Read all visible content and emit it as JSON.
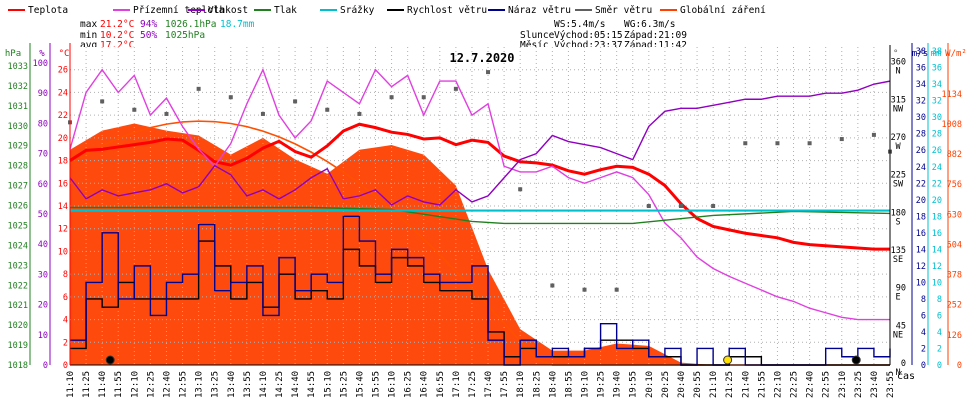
{
  "legend": [
    {
      "label": "Teplota",
      "color": "#ff0000"
    },
    {
      "label": "Přízemní teplota",
      "color": "#e040e0"
    },
    {
      "label": "Vlhkost",
      "color": "#9000c0"
    },
    {
      "label": "Tlak",
      "color": "#208020"
    },
    {
      "label": "Srážky",
      "color": "#00c0d0"
    },
    {
      "label": "Rychlost větru",
      "color": "#000000"
    },
    {
      "label": "Náraz větru",
      "color": "#000090"
    },
    {
      "label": "Směr větru",
      "color": "#606060"
    },
    {
      "label": "Globální záření",
      "color": "#ff4000"
    }
  ],
  "stats": {
    "max": {
      "label": "max",
      "temp": "21.2°C",
      "hum": "94%",
      "press": "1026.1hPa",
      "rain": "18.7mm"
    },
    "min": {
      "label": "min",
      "temp": "10.2°C",
      "hum": "50%",
      "press": "1025hPa"
    },
    "avg": {
      "label": "avg",
      "temp": "17.2°C"
    },
    "ws": "WS:5.4m/s",
    "wg": "WG:6.3m/s",
    "slunce": "Slunce",
    "mesic": "Měsíc",
    "sun_rise": "Východ:05:15",
    "sun_set": "Západ:21:09",
    "moon_rise": "Východ:23:37",
    "moon_set": "Západ:11:42"
  },
  "chart_data": {
    "type": "line",
    "title": "12.7.2020",
    "x_unit_label": "čas",
    "x_ticks": [
      "11:10",
      "11:25",
      "11:40",
      "11:55",
      "12:10",
      "12:25",
      "12:40",
      "12:55",
      "13:10",
      "13:25",
      "13:40",
      "13:55",
      "14:10",
      "14:25",
      "14:40",
      "14:55",
      "15:10",
      "15:25",
      "15:40",
      "15:55",
      "16:10",
      "16:25",
      "16:40",
      "16:55",
      "17:10",
      "17:25",
      "17:40",
      "17:55",
      "18:10",
      "18:25",
      "18:40",
      "18:55",
      "19:10",
      "19:25",
      "19:40",
      "19:55",
      "20:10",
      "20:25",
      "20:40",
      "20:55",
      "21:10",
      "21:25",
      "21:40",
      "21:55",
      "22:10",
      "22:25",
      "22:40",
      "22:55",
      "23:10",
      "23:25",
      "23:40",
      "23:55"
    ],
    "axes": {
      "hpa": {
        "label": "hPa",
        "color": "#208020",
        "ticks": [
          "1018",
          "1019",
          "1020",
          "1021",
          "1022",
          "1023",
          "1024",
          "1025",
          "1026",
          "1027",
          "1028",
          "1029",
          "1030",
          "1031",
          "1032",
          "1033"
        ]
      },
      "percent": {
        "label": "%",
        "color": "#9000c0",
        "ticks": [
          "0",
          "10",
          "20",
          "30",
          "40",
          "50",
          "60",
          "70",
          "80",
          "90",
          "100"
        ]
      },
      "celsius": {
        "label": "°C",
        "color": "#ff0000",
        "ticks": [
          "0",
          "2",
          "4",
          "6",
          "8",
          "10",
          "12",
          "14",
          "16",
          "18",
          "20",
          "22",
          "24",
          "26"
        ]
      },
      "direction": {
        "label": "°",
        "color": "#606060",
        "ticks": [
          {
            "deg": "0",
            "dir": "N"
          },
          {
            "deg": "45",
            "dir": "NE"
          },
          {
            "deg": "90",
            "dir": "E"
          },
          {
            "deg": "135",
            "dir": "SE"
          },
          {
            "deg": "180",
            "dir": "S"
          },
          {
            "deg": "225",
            "dir": "SW"
          },
          {
            "deg": "270",
            "dir": "W"
          },
          {
            "deg": "315",
            "dir": "NW"
          },
          {
            "deg": "360",
            "dir": "N"
          }
        ]
      },
      "ms": {
        "label": "m/s",
        "color": "#000090",
        "ticks": [
          "0",
          "2",
          "4",
          "6",
          "8",
          "10",
          "12",
          "14",
          "16",
          "18",
          "20",
          "22",
          "24",
          "26",
          "28",
          "30",
          "32",
          "34",
          "36",
          "38"
        ]
      },
      "mm": {
        "label": "mm",
        "color": "#00c0d0",
        "ticks": [
          "0",
          "2",
          "4",
          "6",
          "8",
          "10",
          "12",
          "14",
          "16",
          "18",
          "20",
          "22",
          "24",
          "26",
          "28",
          "30",
          "32",
          "34",
          "36",
          "38"
        ]
      },
      "wm": {
        "label": "W/m²",
        "color": "#ff4000",
        "ticks": [
          "0",
          "126",
          "252",
          "378",
          "504",
          "630",
          "756",
          "882",
          "1008",
          "1134"
        ]
      }
    },
    "series": [
      {
        "name": "Teplota",
        "unit": "°C",
        "color": "#ff0000",
        "x": [
          0,
          1,
          2,
          3,
          4,
          5,
          6,
          7,
          8,
          9,
          10,
          11,
          12,
          13,
          14,
          15,
          16,
          17,
          18,
          19,
          20,
          21,
          22,
          23,
          24,
          25,
          26,
          27,
          28,
          29,
          30,
          31,
          32,
          33,
          34,
          35,
          36,
          37,
          38,
          39,
          40,
          41,
          42,
          43,
          44,
          45,
          46,
          47,
          48,
          49,
          50,
          51
        ],
        "values": [
          18,
          18.9,
          19,
          19.2,
          19.4,
          19.6,
          19.9,
          19.8,
          18.9,
          17.9,
          17.6,
          18.2,
          19.1,
          19.7,
          18.8,
          18.3,
          19.3,
          20.6,
          21.2,
          20.9,
          20.5,
          20.3,
          19.9,
          20,
          19.4,
          19.8,
          19.6,
          18.4,
          17.9,
          17.8,
          17.6,
          17.1,
          16.8,
          17.2,
          17.5,
          17.4,
          16.8,
          15.8,
          14.2,
          12.9,
          12.2,
          11.9,
          11.6,
          11.4,
          11.2,
          10.8,
          10.6,
          10.5,
          10.4,
          10.3,
          10.2,
          10.2
        ]
      },
      {
        "name": "Přízemní teplota",
        "unit": "°C",
        "color": "#e040e0",
        "x": [
          0,
          1,
          2,
          3,
          4,
          5,
          6,
          7,
          8,
          9,
          10,
          11,
          12,
          13,
          14,
          15,
          16,
          17,
          18,
          19,
          20,
          21,
          22,
          23,
          24,
          25,
          26,
          27,
          28,
          29,
          30,
          31,
          32,
          33,
          34,
          35,
          36,
          37,
          38,
          39,
          40,
          41,
          42,
          43,
          44,
          45,
          46,
          47,
          48,
          49,
          50,
          51
        ],
        "values": [
          19,
          24,
          26,
          24,
          25.5,
          22,
          23.5,
          21,
          19,
          17.5,
          19.5,
          23,
          26,
          22,
          20,
          21.5,
          25,
          24,
          23,
          26,
          24.5,
          25.5,
          22,
          25,
          25,
          22,
          23,
          17.5,
          17,
          17,
          17.5,
          16.5,
          16,
          16.5,
          17,
          16.5,
          15,
          12.5,
          11.2,
          9.5,
          8.5,
          7.8,
          7.2,
          6.6,
          6,
          5.6,
          5,
          4.6,
          4.2,
          4,
          4,
          4
        ]
      },
      {
        "name": "Vlhkost",
        "unit": "%",
        "color": "#9000c0",
        "x": [
          0,
          1,
          2,
          3,
          4,
          5,
          6,
          7,
          8,
          9,
          10,
          11,
          12,
          13,
          14,
          15,
          16,
          17,
          18,
          19,
          20,
          21,
          22,
          23,
          24,
          25,
          26,
          27,
          28,
          29,
          30,
          31,
          32,
          33,
          34,
          35,
          36,
          37,
          38,
          39,
          40,
          41,
          42,
          43,
          44,
          45,
          46,
          47,
          48,
          49,
          50,
          51
        ],
        "values": [
          62,
          55,
          58,
          56,
          57,
          58,
          60,
          57,
          59,
          66,
          63,
          56,
          58,
          55,
          58,
          62,
          65,
          55,
          56,
          58,
          53,
          56,
          54,
          53,
          58,
          54,
          56,
          62,
          68,
          70,
          76,
          74,
          73,
          72,
          70,
          68,
          79,
          84,
          85,
          85,
          86,
          87,
          88,
          88,
          89,
          89,
          89,
          90,
          90,
          91,
          93,
          94
        ]
      },
      {
        "name": "Tlak",
        "unit": "hPa",
        "color": "#208020",
        "x": [
          0,
          5,
          10,
          15,
          20,
          25,
          27,
          30,
          35,
          40,
          45,
          51
        ],
        "values": [
          1025.9,
          1025.9,
          1025.9,
          1025.9,
          1025.8,
          1025.2,
          1025.1,
          1025.1,
          1025.1,
          1025.5,
          1025.7,
          1025.6
        ]
      },
      {
        "name": "Srážky",
        "unit": "mm",
        "color": "#00c0d0",
        "x": [
          0,
          51
        ],
        "values": [
          18.7,
          18.7
        ]
      },
      {
        "name": "Rychlost větru",
        "unit": "m/s",
        "color": "#000000",
        "x": [
          0,
          1,
          2,
          3,
          4,
          5,
          6,
          7,
          8,
          9,
          10,
          11,
          12,
          13,
          14,
          15,
          16,
          17,
          18,
          19,
          20,
          21,
          22,
          23,
          24,
          25,
          26,
          27,
          28,
          29,
          30,
          31,
          32,
          33,
          34,
          35,
          36,
          37,
          38,
          39,
          40,
          41,
          42,
          43,
          44,
          45,
          46,
          47,
          48,
          49,
          50,
          51
        ],
        "values": [
          2,
          8,
          7,
          10,
          8,
          8,
          8,
          8,
          15,
          12,
          8,
          10,
          7,
          11,
          8,
          9,
          8,
          14,
          12,
          10,
          13,
          12,
          10,
          9,
          9,
          8,
          4,
          1,
          2,
          1,
          1,
          1,
          2,
          3,
          3,
          2,
          1,
          1,
          0,
          0,
          0,
          1,
          1,
          0,
          0,
          0,
          0,
          0,
          0,
          0,
          0,
          0
        ]
      },
      {
        "name": "Náraz větru",
        "unit": "m/s",
        "color": "#000090",
        "x": [
          0,
          1,
          2,
          3,
          4,
          5,
          6,
          7,
          8,
          9,
          10,
          11,
          12,
          13,
          14,
          15,
          16,
          17,
          18,
          19,
          20,
          21,
          22,
          23,
          24,
          25,
          26,
          27,
          28,
          29,
          30,
          31,
          32,
          33,
          34,
          35,
          36,
          37,
          38,
          39,
          40,
          41,
          42,
          43,
          44,
          45,
          46,
          47,
          48,
          49,
          50,
          51
        ],
        "values": [
          3,
          10,
          16,
          8,
          12,
          6,
          10,
          11,
          17,
          9,
          10,
          12,
          6,
          13,
          9,
          11,
          10,
          18,
          15,
          11,
          14,
          13,
          11,
          10,
          10,
          12,
          3,
          0,
          3,
          1,
          2,
          1,
          2,
          5,
          2,
          3,
          1,
          2,
          0,
          2,
          0,
          2,
          0,
          0,
          0,
          0,
          0,
          2,
          1,
          2,
          1,
          2
        ]
      },
      {
        "name": "Směr větru",
        "unit": "°",
        "color": "#606060",
        "x": [
          0,
          2,
          4,
          6,
          8,
          10,
          12,
          14,
          16,
          18,
          20,
          22,
          24,
          26,
          28,
          30,
          32,
          34,
          36,
          38,
          40,
          42,
          44,
          46,
          48,
          50,
          51
        ],
        "values": [
          290,
          315,
          305,
          300,
          330,
          320,
          300,
          315,
          305,
          300,
          320,
          320,
          330,
          350,
          210,
          95,
          90,
          90,
          190,
          190,
          190,
          265,
          265,
          265,
          270,
          275,
          255
        ]
      },
      {
        "name": "Globální záření",
        "unit": "W/m²",
        "color": "#ff4000",
        "x": [
          0,
          2,
          4,
          6,
          8,
          10,
          12,
          14,
          16,
          18,
          20,
          22,
          24,
          26,
          28,
          30,
          32,
          34,
          36,
          38,
          40,
          42,
          44,
          46,
          48,
          50,
          51
        ],
        "values": [
          900,
          980,
          1010,
          980,
          960,
          880,
          950,
          860,
          800,
          900,
          920,
          880,
          750,
          400,
          150,
          60,
          60,
          90,
          80,
          10,
          0,
          0,
          0,
          0,
          0,
          0,
          0
        ]
      }
    ],
    "markers": [
      {
        "name": "sunrise-marker",
        "color": "#000000",
        "x": 2.5
      },
      {
        "name": "sunset-marker",
        "color": "#ffe000",
        "x": 40.9
      },
      {
        "name": "moonrise-marker",
        "color": "#000000",
        "x": 48.9
      }
    ]
  }
}
